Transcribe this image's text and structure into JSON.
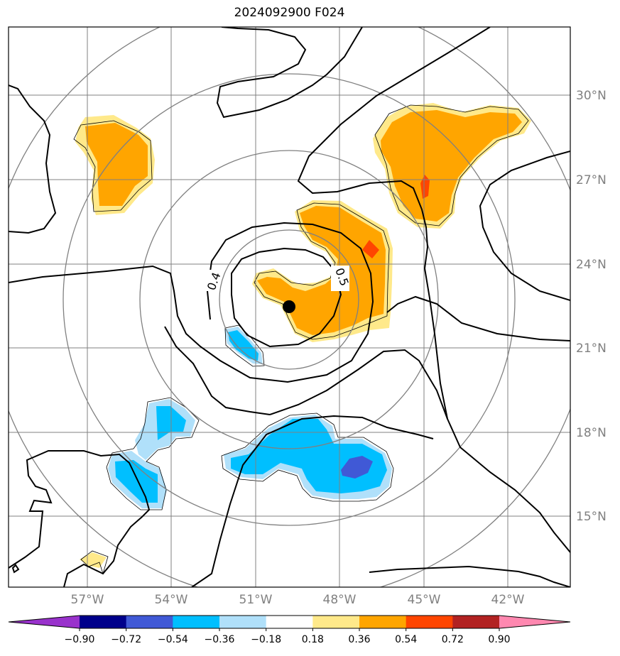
{
  "title": "2024092900 F024",
  "map": {
    "latitude_labels": [
      "30°N",
      "27°N",
      "24°N",
      "21°N",
      "18°N",
      "15°N"
    ],
    "longitude_labels": [
      "57°W",
      "54°W",
      "51°W",
      "48°W",
      "45°W",
      "42°W"
    ],
    "contour_labels": [
      "0.4",
      "0.5"
    ],
    "center_marker": "storm-center-dot",
    "gridline_color": "#808080",
    "contour_color": "#000000"
  },
  "colorbar": {
    "levels": [
      "−0.90",
      "−0.72",
      "−0.54",
      "−0.36",
      "−0.18",
      "0.18",
      "0.36",
      "0.54",
      "0.72",
      "0.90"
    ],
    "colors": [
      "#9932CC",
      "#00008B",
      "#4059D6",
      "#00BFFF",
      "#B0E0FA",
      "#FFFFFF",
      "#FFE98A",
      "#FFA500",
      "#FF4500",
      "#B22222",
      "#FF88B0"
    ]
  }
}
